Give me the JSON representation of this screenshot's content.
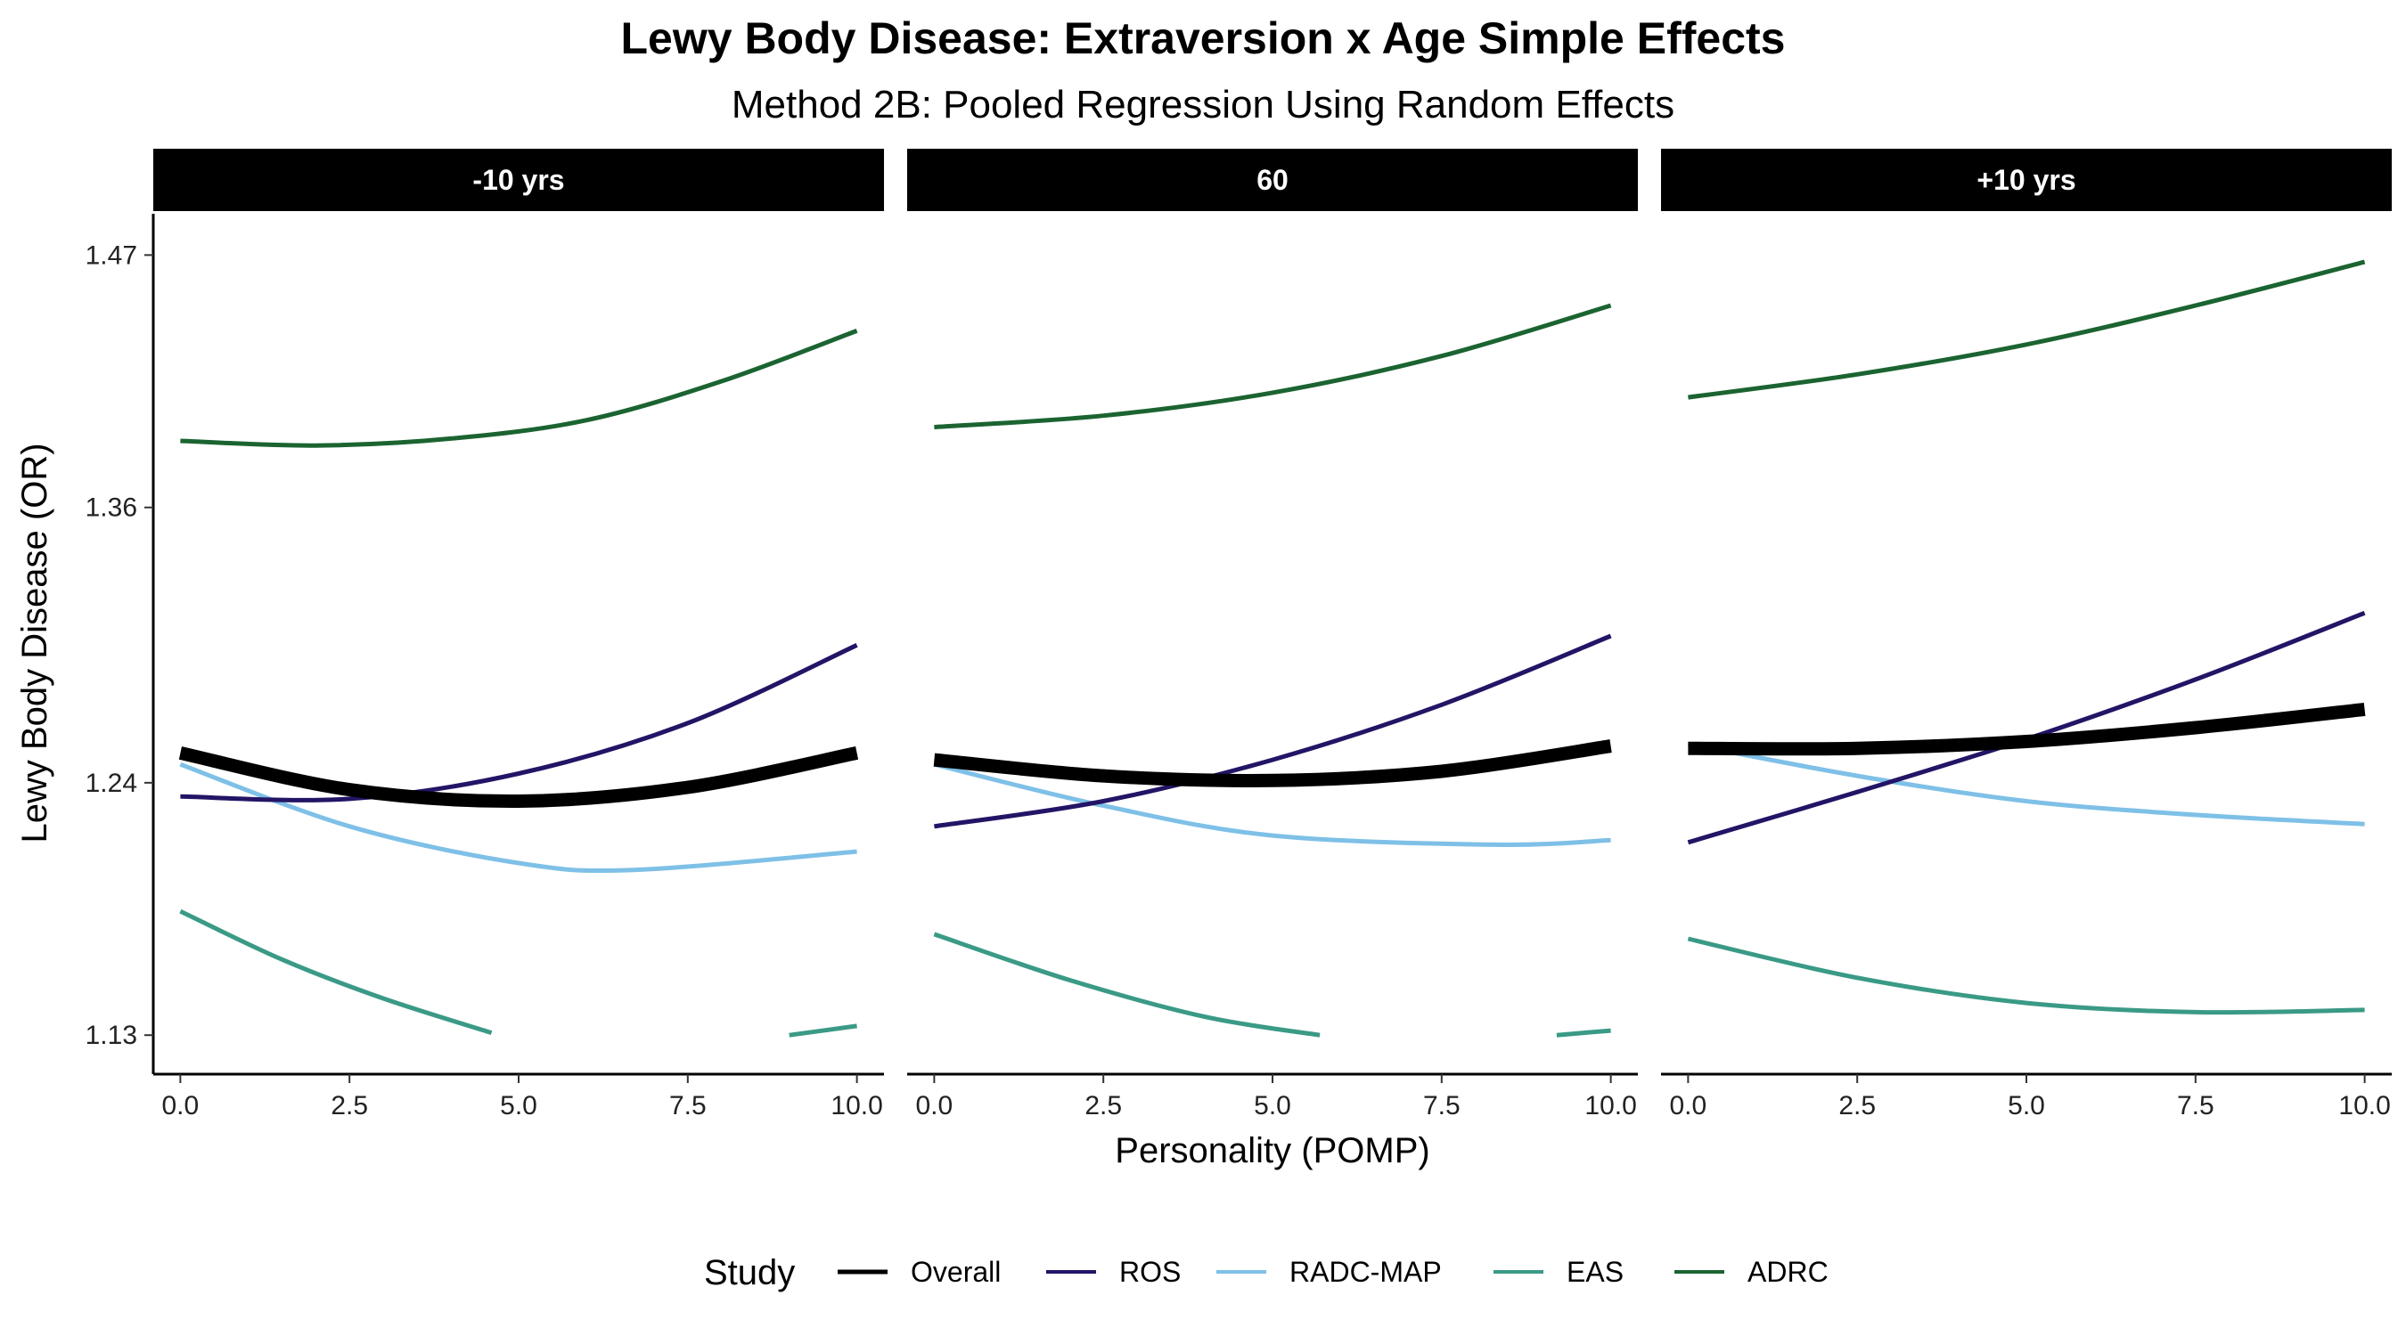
{
  "chart_data": {
    "type": "line",
    "title": "Lewy Body Disease: Extraversion x Age Simple Effects",
    "subtitle": "Method 2B: Pooled Regression Using Random Effects",
    "xlabel": "Personality (POMP)",
    "ylabel": "Lewy Body Disease (OR)",
    "xlim": [
      -0.4,
      10.4
    ],
    "ylim": [
      1.113,
      1.488
    ],
    "x_ticks": [
      "0.0",
      "2.5",
      "5.0",
      "7.5",
      "10.0"
    ],
    "x_tick_values": [
      0,
      2.5,
      5,
      7.5,
      10
    ],
    "y_ticks": [
      "1.13",
      "1.24",
      "1.36",
      "1.47"
    ],
    "y_tick_values": [
      1.13,
      1.24,
      1.36,
      1.47
    ],
    "legend": {
      "title": "Study",
      "position": "bottom"
    },
    "series_styles": [
      {
        "name": "Overall",
        "color": "#000000",
        "weight": "thick"
      },
      {
        "name": "ROS",
        "color": "#241466",
        "weight": "normal"
      },
      {
        "name": "RADC-MAP",
        "color": "#7ec0e7",
        "weight": "normal"
      },
      {
        "name": "EAS",
        "color": "#3a9a86",
        "weight": "normal"
      },
      {
        "name": "ADRC",
        "color": "#1b6431",
        "weight": "normal"
      }
    ],
    "panels": [
      {
        "strip": "-10 yrs",
        "series": [
          {
            "name": "Overall",
            "points": [
              [
                0,
                1.253
              ],
              [
                2.5,
                1.237
              ],
              [
                5,
                1.232
              ],
              [
                7.5,
                1.238
              ],
              [
                10,
                1.253
              ]
            ]
          },
          {
            "name": "ROS",
            "points": [
              [
                0,
                1.234
              ],
              [
                2.5,
                1.233
              ],
              [
                5,
                1.244
              ],
              [
                7.5,
                1.266
              ],
              [
                10,
                1.3
              ]
            ]
          },
          {
            "name": "RADC-MAP",
            "points": [
              [
                0,
                1.248
              ],
              [
                2.5,
                1.221
              ],
              [
                5,
                1.205
              ],
              [
                6.7,
                1.202
              ],
              [
                10,
                1.21
              ]
            ]
          },
          {
            "name": "EAS",
            "segments": [
              [
                [
                  0,
                  1.184
                ],
                [
                  1.5,
                  1.163
                ],
                [
                  3,
                  1.146
                ],
                [
                  4.6,
                  1.131
                ]
              ],
              [
                [
                  9,
                  1.13
                ],
                [
                  10,
                  1.134
                ]
              ]
            ]
          },
          {
            "name": "ADRC",
            "points": [
              [
                0,
                1.389
              ],
              [
                2,
                1.387
              ],
              [
                4,
                1.39
              ],
              [
                6,
                1.398
              ],
              [
                8,
                1.415
              ],
              [
                10,
                1.437
              ]
            ]
          }
        ]
      },
      {
        "strip": "60",
        "series": [
          {
            "name": "Overall",
            "points": [
              [
                0,
                1.25
              ],
              [
                2.5,
                1.243
              ],
              [
                5,
                1.241
              ],
              [
                7.5,
                1.245
              ],
              [
                10,
                1.256
              ]
            ]
          },
          {
            "name": "ROS",
            "points": [
              [
                0,
                1.221
              ],
              [
                2.5,
                1.232
              ],
              [
                5,
                1.25
              ],
              [
                7.5,
                1.274
              ],
              [
                10,
                1.304
              ]
            ]
          },
          {
            "name": "RADC-MAP",
            "points": [
              [
                0,
                1.248
              ],
              [
                2.5,
                1.23
              ],
              [
                5,
                1.217
              ],
              [
                8.3,
                1.213
              ],
              [
                10,
                1.215
              ]
            ]
          },
          {
            "name": "EAS",
            "segments": [
              [
                [
                  0,
                  1.174
                ],
                [
                  2,
                  1.154
                ],
                [
                  4,
                  1.138
                ],
                [
                  5.7,
                  1.13
                ]
              ],
              [
                [
                  9.2,
                  1.13
                ],
                [
                  10,
                  1.132
                ]
              ]
            ]
          },
          {
            "name": "ADRC",
            "points": [
              [
                0,
                1.395
              ],
              [
                2.5,
                1.4
              ],
              [
                5,
                1.41
              ],
              [
                7.5,
                1.426
              ],
              [
                10,
                1.448
              ]
            ]
          }
        ]
      },
      {
        "strip": "+10 yrs",
        "series": [
          {
            "name": "Overall",
            "points": [
              [
                0,
                1.255
              ],
              [
                2.5,
                1.255
              ],
              [
                5,
                1.258
              ],
              [
                7.5,
                1.264
              ],
              [
                10,
                1.272
              ]
            ]
          },
          {
            "name": "ROS",
            "points": [
              [
                0,
                1.214
              ],
              [
                2.5,
                1.236
              ],
              [
                5,
                1.259
              ],
              [
                7.5,
                1.285
              ],
              [
                10,
                1.314
              ]
            ]
          },
          {
            "name": "RADC-MAP",
            "points": [
              [
                0,
                1.257
              ],
              [
                2.5,
                1.243
              ],
              [
                5,
                1.232
              ],
              [
                7.5,
                1.226
              ],
              [
                10,
                1.222
              ]
            ]
          },
          {
            "name": "EAS",
            "points": [
              [
                0,
                1.172
              ],
              [
                2.5,
                1.155
              ],
              [
                5,
                1.144
              ],
              [
                7.5,
                1.14
              ],
              [
                10,
                1.141
              ]
            ]
          },
          {
            "name": "ADRC",
            "points": [
              [
                0,
                1.408
              ],
              [
                2.5,
                1.418
              ],
              [
                5,
                1.431
              ],
              [
                7.5,
                1.448
              ],
              [
                10,
                1.467
              ]
            ]
          }
        ]
      }
    ]
  }
}
